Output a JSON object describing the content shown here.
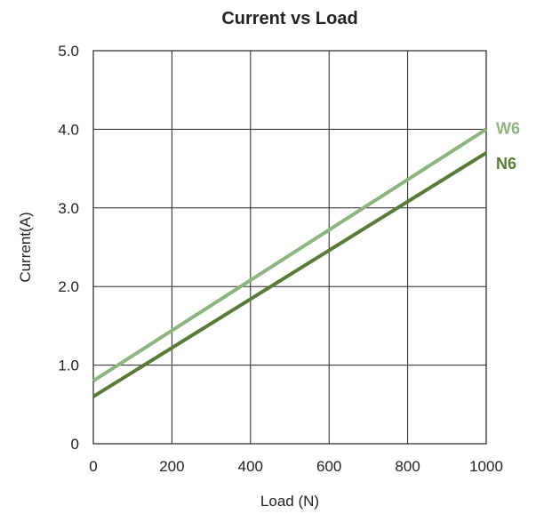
{
  "chart_data": {
    "type": "line",
    "title": "Current vs Load",
    "xlabel": "Load (N)",
    "ylabel": "Current(A)",
    "xlim": [
      0,
      1000
    ],
    "ylim": [
      0,
      5
    ],
    "x_ticks": [
      "0",
      "200",
      "400",
      "600",
      "800",
      "1000"
    ],
    "y_ticks": [
      "0",
      "1.0",
      "2.0",
      "3.0",
      "4.0",
      "5.0"
    ],
    "grid": true,
    "legend": "direct labels at right end of lines",
    "series": [
      {
        "name": "W6",
        "color": "#8db37e",
        "x": [
          0,
          1000
        ],
        "y": [
          0.8,
          4.0
        ]
      },
      {
        "name": "N6",
        "color": "#5a7a3a",
        "x": [
          0,
          1000
        ],
        "y": [
          0.6,
          3.7
        ]
      }
    ]
  }
}
